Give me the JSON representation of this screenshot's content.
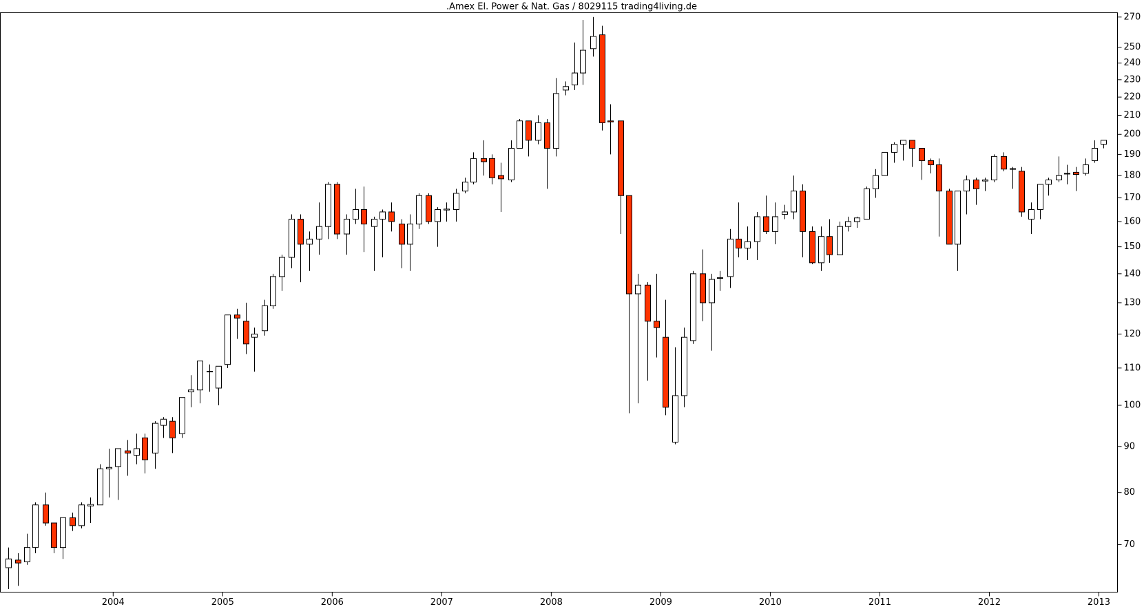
{
  "chart_data": {
    "type": "candlestick",
    "title": ".Amex El. Power & Nat. Gas / 8029115 trading4living.de",
    "log_y": true,
    "up_color": "#ffffff",
    "down_color": "#ff3300",
    "outline_color": "#000000",
    "xlim": [
      2002.97,
      2013.17
    ],
    "xticks": [
      2004,
      2005,
      2006,
      2007,
      2008,
      2009,
      2010,
      2011,
      2012,
      2013
    ],
    "ylim": [
      62,
      273
    ],
    "yticks": [
      70,
      80,
      90,
      100,
      110,
      120,
      130,
      140,
      150,
      160,
      170,
      180,
      190,
      200,
      210,
      220,
      230,
      240,
      250,
      270
    ],
    "x": [
      2003.04,
      2003.13,
      2003.21,
      2003.29,
      2003.38,
      2003.46,
      2003.54,
      2003.63,
      2003.71,
      2003.79,
      2003.88,
      2003.96,
      2004.04,
      2004.13,
      2004.21,
      2004.29,
      2004.38,
      2004.46,
      2004.54,
      2004.63,
      2004.71,
      2004.79,
      2004.88,
      2004.96,
      2005.04,
      2005.13,
      2005.21,
      2005.29,
      2005.38,
      2005.46,
      2005.54,
      2005.63,
      2005.71,
      2005.79,
      2005.88,
      2005.96,
      2006.04,
      2006.13,
      2006.21,
      2006.29,
      2006.38,
      2006.46,
      2006.54,
      2006.63,
      2006.71,
      2006.79,
      2006.88,
      2006.96,
      2007.04,
      2007.13,
      2007.21,
      2007.29,
      2007.38,
      2007.46,
      2007.54,
      2007.63,
      2007.71,
      2007.79,
      2007.88,
      2007.96,
      2008.04,
      2008.13,
      2008.21,
      2008.29,
      2008.38,
      2008.46,
      2008.54,
      2008.63,
      2008.71,
      2008.79,
      2008.88,
      2008.96,
      2009.04,
      2009.13,
      2009.21,
      2009.29,
      2009.38,
      2009.46,
      2009.54,
      2009.63,
      2009.71,
      2009.79,
      2009.88,
      2009.96,
      2010.04,
      2010.13,
      2010.21,
      2010.29,
      2010.38,
      2010.46,
      2010.54,
      2010.63,
      2010.71,
      2010.79,
      2010.88,
      2010.96,
      2011.04,
      2011.13,
      2011.21,
      2011.29,
      2011.38,
      2011.46,
      2011.54,
      2011.63,
      2011.71,
      2011.79,
      2011.88,
      2011.96,
      2012.04,
      2012.13,
      2012.21,
      2012.29,
      2012.38,
      2012.46,
      2012.54,
      2012.63,
      2012.71,
      2012.79,
      2012.88,
      2012.96,
      2013.04
    ],
    "open": [
      66,
      67.3,
      67,
      69.5,
      77.5,
      74,
      69.5,
      75,
      73.5,
      77.3,
      77.5,
      85,
      85.5,
      89,
      88,
      92,
      88.5,
      95,
      96,
      93,
      103.5,
      104,
      109.1,
      104.5,
      111,
      126,
      124,
      119,
      121,
      129,
      139,
      146,
      161,
      151,
      153,
      158,
      176,
      155,
      161,
      165,
      158,
      161,
      164,
      159,
      151,
      159,
      171,
      160,
      164.8,
      165,
      173,
      177,
      188,
      188,
      180,
      178,
      193,
      207,
      197,
      206,
      193,
      224,
      227,
      234,
      249,
      258,
      207,
      207,
      171,
      133,
      136,
      124,
      119,
      91,
      102.5,
      118,
      140,
      130,
      138.4,
      139,
      153,
      149.5,
      152,
      162,
      156,
      163,
      164,
      173,
      156,
      144,
      154,
      147,
      158,
      160,
      161,
      174,
      180,
      191,
      195,
      197,
      193,
      187,
      185,
      173,
      151,
      173,
      178,
      177.5,
      178,
      189,
      183.2,
      182,
      161,
      165,
      176,
      178,
      180.8,
      181.5,
      181,
      187,
      195
    ],
    "high": [
      69.5,
      68.5,
      72,
      78,
      80,
      74,
      75,
      76,
      78,
      79,
      86,
      89.5,
      89.5,
      91.5,
      93,
      93,
      96,
      97,
      97,
      102,
      108,
      112,
      111,
      110.5,
      126,
      128,
      130,
      122,
      131,
      140,
      147,
      163,
      163,
      156,
      168,
      177,
      177,
      163,
      174,
      175,
      162,
      165,
      168,
      161,
      163,
      172,
      172,
      166,
      168,
      174,
      179,
      191,
      197,
      190,
      186,
      197,
      208,
      207,
      210,
      208,
      231,
      229,
      253,
      268,
      270,
      264,
      216,
      207,
      171,
      140,
      137,
      140,
      131,
      116,
      122,
      141,
      149,
      140,
      141,
      157,
      168,
      158,
      164,
      171,
      168,
      167,
      180,
      176,
      158,
      158,
      161,
      160,
      162,
      162,
      175,
      183,
      191,
      196,
      197,
      197,
      193,
      188,
      188,
      174,
      173,
      180,
      179,
      179,
      190,
      191,
      184,
      184,
      168,
      176,
      179,
      189,
      185,
      184,
      188,
      197,
      197
    ],
    "low": [
      62.5,
      63,
      66.5,
      68.5,
      73.5,
      68.5,
      67.5,
      72.5,
      73,
      74,
      77.5,
      79,
      78.5,
      83.5,
      86,
      84,
      85,
      92,
      88.5,
      92,
      99.5,
      100.5,
      103.5,
      100,
      110,
      118.5,
      114,
      109,
      119.5,
      128,
      134,
      142,
      137,
      141,
      147,
      153,
      153,
      147,
      159,
      148,
      141,
      146,
      156,
      142,
      141,
      157,
      159,
      150,
      160,
      160,
      172,
      176,
      180,
      176,
      164,
      177,
      193,
      189,
      195,
      174,
      189,
      221,
      224,
      227,
      244,
      202,
      190,
      155,
      98,
      100.5,
      106.5,
      113,
      97.5,
      90.5,
      99.5,
      117,
      124,
      115,
      134,
      135,
      146,
      145,
      145,
      155,
      151,
      161,
      161,
      146,
      143.5,
      141,
      144,
      147,
      156,
      157.5,
      161,
      170,
      180,
      186,
      187,
      184,
      178,
      181,
      154,
      151,
      141,
      163,
      167,
      173,
      177,
      182,
      174,
      162,
      155,
      161,
      171,
      177,
      176,
      173,
      180,
      186,
      193
    ],
    "close": [
      67.5,
      66.8,
      69.5,
      77.5,
      74,
      69.5,
      75,
      73.5,
      77.5,
      77.6,
      85,
      85.3,
      89.5,
      88.5,
      89.5,
      87,
      95.5,
      96.5,
      92,
      102,
      104,
      112,
      109,
      110.5,
      126,
      125,
      117,
      120,
      129,
      139,
      146,
      161,
      151,
      153,
      158,
      176,
      155,
      161,
      165,
      159,
      161,
      164,
      160,
      151,
      159,
      171,
      160,
      165,
      165.2,
      172,
      177,
      188,
      186.5,
      179,
      178.5,
      193,
      207,
      197,
      206,
      193,
      222,
      226,
      234,
      248,
      257,
      206,
      206.5,
      171,
      133,
      136,
      124,
      122,
      99.5,
      102.5,
      119,
      140,
      130,
      138,
      138.6,
      153,
      149.5,
      152,
      162,
      156,
      162,
      164,
      173,
      156,
      144,
      154,
      147,
      158,
      160,
      161.5,
      174,
      180,
      191,
      195,
      197,
      193,
      187,
      185,
      173,
      151,
      173,
      178,
      174,
      178,
      189,
      183,
      183,
      164,
      165,
      176,
      178,
      180,
      181,
      180.5,
      185,
      193,
      197
    ]
  }
}
